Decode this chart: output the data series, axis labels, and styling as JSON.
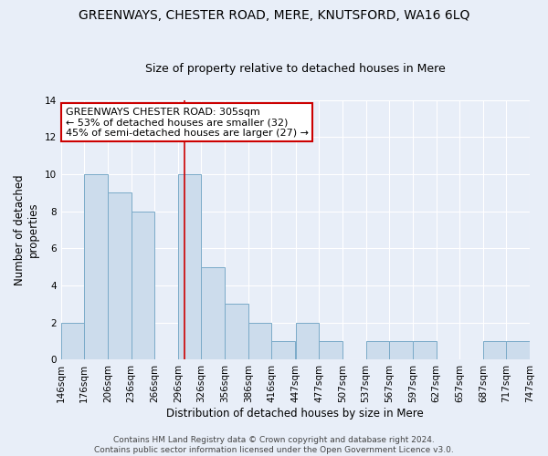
{
  "title": "GREENWAYS, CHESTER ROAD, MERE, KNUTSFORD, WA16 6LQ",
  "subtitle": "Size of property relative to detached houses in Mere",
  "xlabel": "Distribution of detached houses by size in Mere",
  "ylabel": "Number of detached\nproperties",
  "bin_edges": [
    146,
    176,
    206,
    236,
    266,
    296,
    326,
    356,
    386,
    416,
    447,
    477,
    507,
    537,
    567,
    597,
    627,
    657,
    687,
    717,
    747
  ],
  "counts": [
    2,
    10,
    9,
    8,
    0,
    10,
    5,
    3,
    2,
    1,
    2,
    1,
    0,
    1,
    1,
    1,
    0,
    0,
    1,
    1
  ],
  "bar_color": "#ccdcec",
  "bar_edge_color": "#7aaac8",
  "red_line_x": 305,
  "red_line_color": "#cc0000",
  "annotation_text_line1": "GREENWAYS CHESTER ROAD: 305sqm",
  "annotation_text_line2": "← 53% of detached houses are smaller (32)",
  "annotation_text_line3": "45% of semi-detached houses are larger (27) →",
  "annotation_box_color": "white",
  "annotation_box_edge_color": "#cc0000",
  "ylim": [
    0,
    14
  ],
  "yticks": [
    0,
    2,
    4,
    6,
    8,
    10,
    12,
    14
  ],
  "footer_text": "Contains HM Land Registry data © Crown copyright and database right 2024.\nContains public sector information licensed under the Open Government Licence v3.0.",
  "title_fontsize": 10,
  "subtitle_fontsize": 9,
  "xlabel_fontsize": 8.5,
  "ylabel_fontsize": 8.5,
  "tick_fontsize": 7.5,
  "annotation_fontsize": 8,
  "footer_fontsize": 6.5,
  "background_color": "#e8eef8"
}
